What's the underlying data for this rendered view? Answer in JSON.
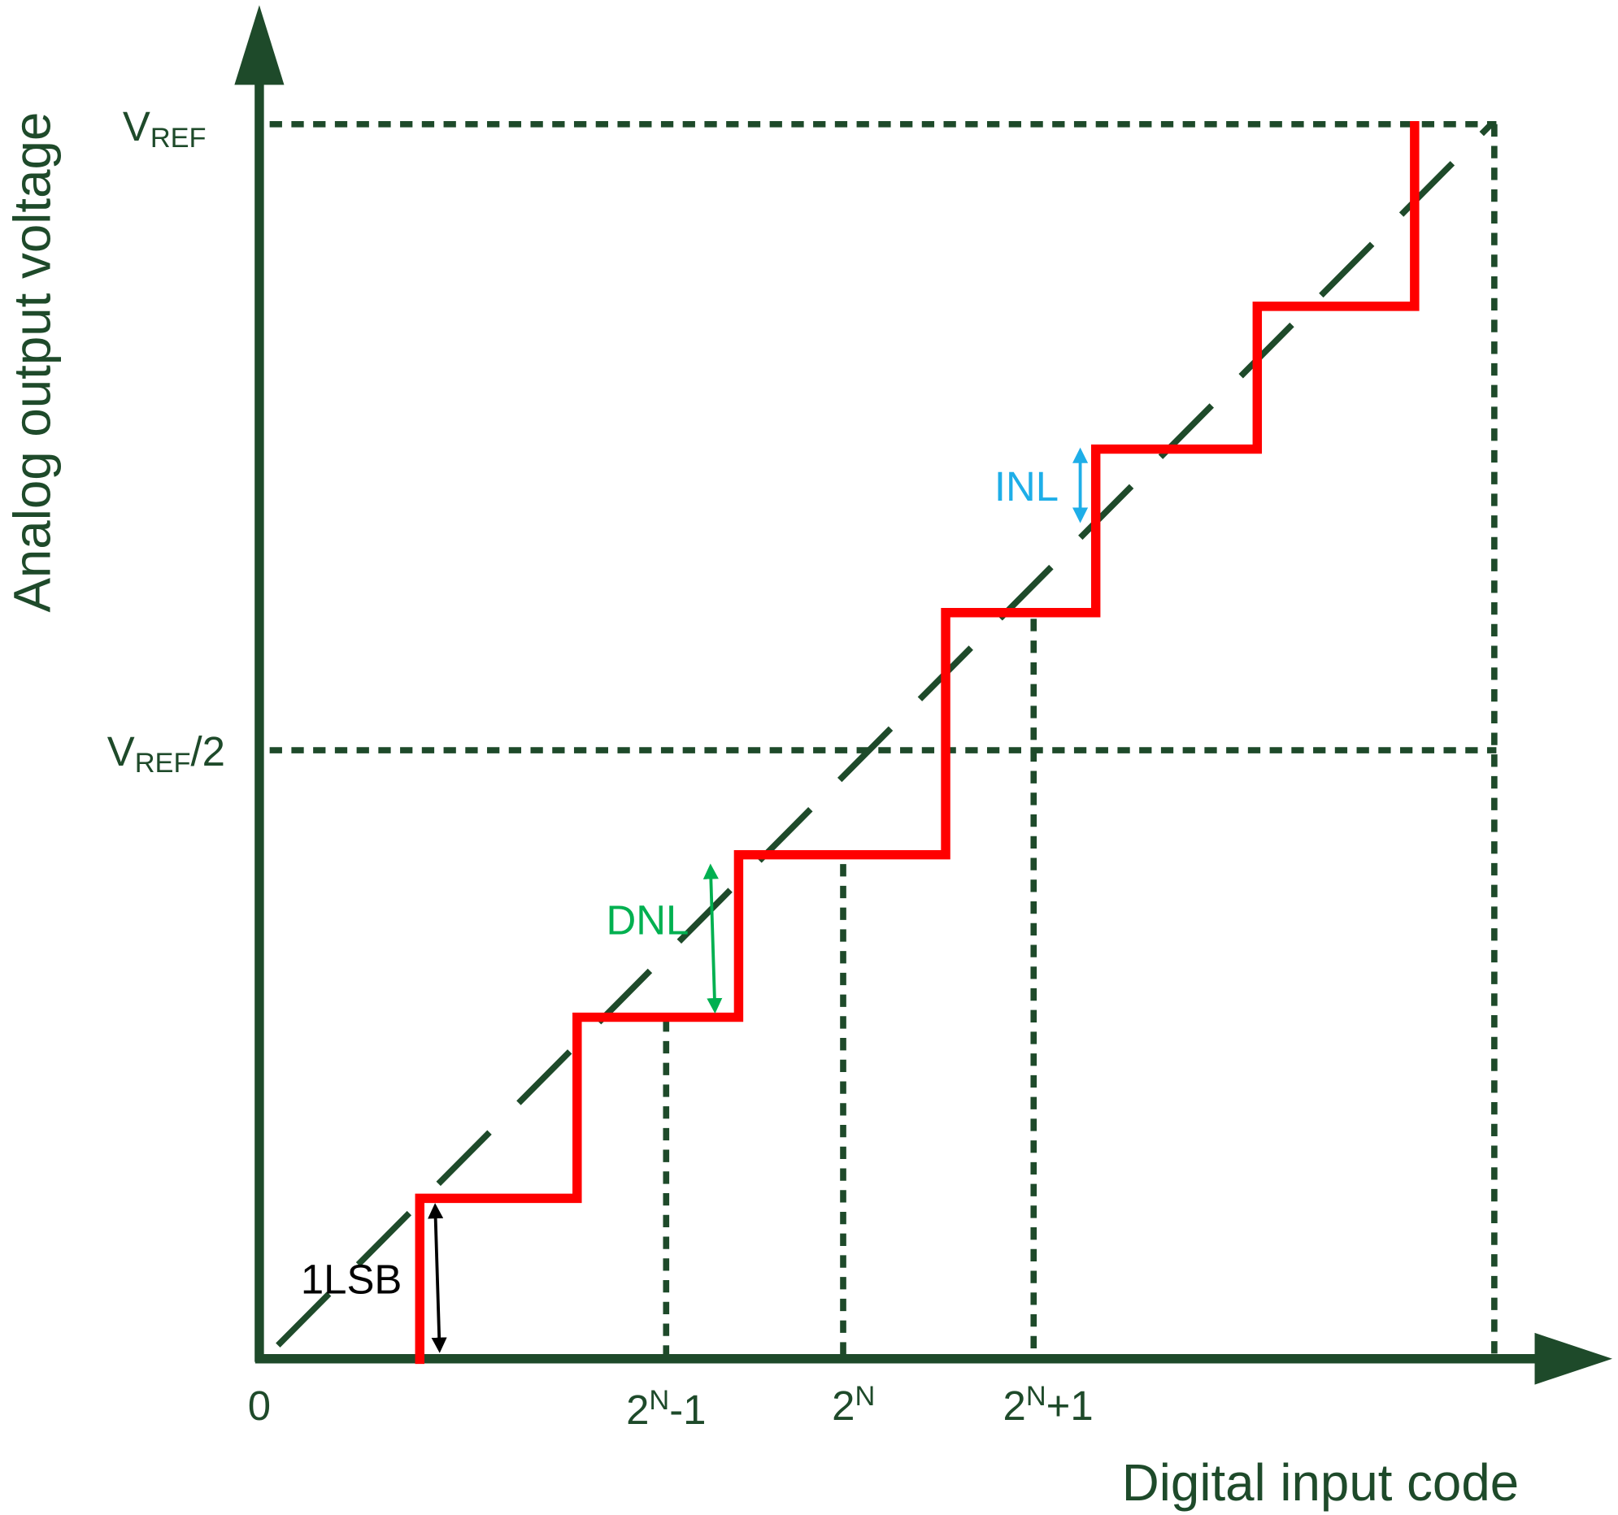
{
  "y_axis_label": "Analog output voltage",
  "x_axis_label": "Digital input code",
  "y_ticks": [
    {
      "base": "V",
      "subscript": "REF"
    },
    {
      "base": "V",
      "subscript": "REF",
      "suffix": "/2"
    }
  ],
  "x_ticks": [
    {
      "base": "0"
    },
    {
      "base": "2",
      "superscript": "N",
      "suffix": "-1"
    },
    {
      "base": "2",
      "superscript": "N"
    },
    {
      "base": "2",
      "superscript": "N",
      "suffix": "+1"
    }
  ],
  "annotations": {
    "lsb": "1LSB",
    "dnl": "DNL",
    "inl": "INL"
  }
}
